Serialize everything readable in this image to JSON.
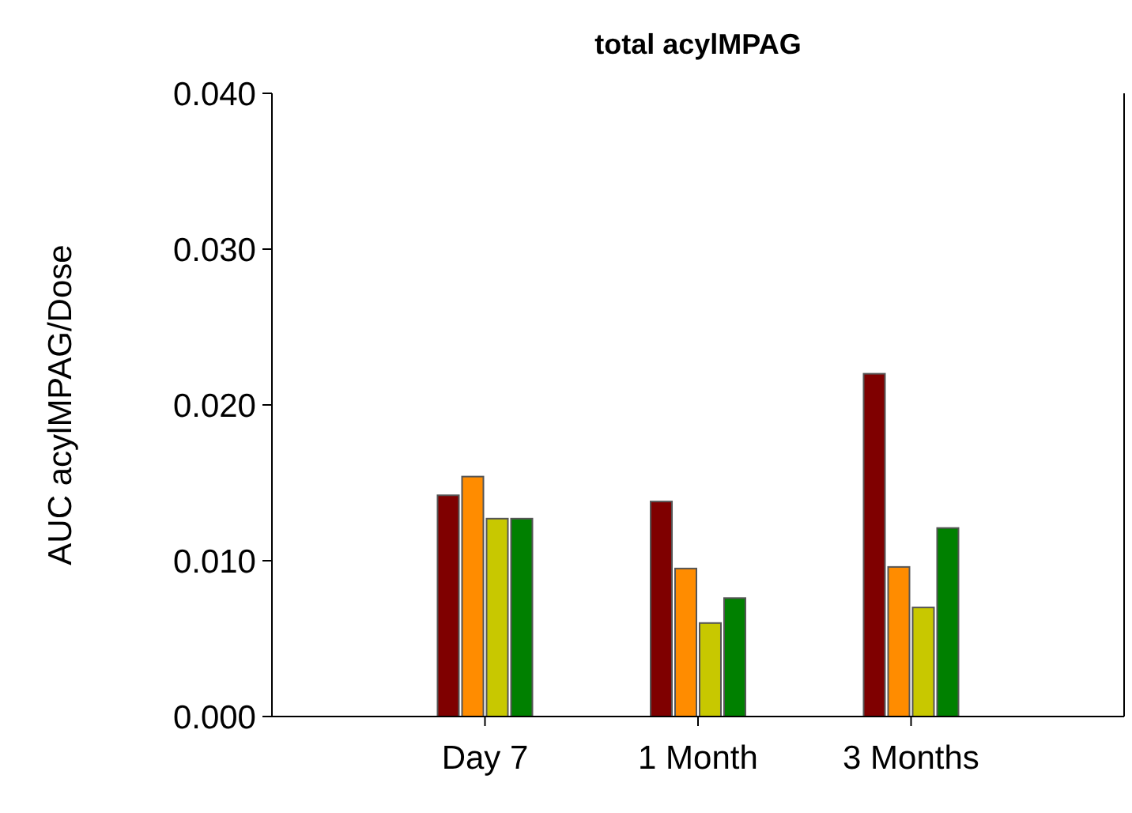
{
  "chart_data": {
    "type": "bar",
    "title": "total acylMPAG",
    "ylabel": "AUC acylMPAG/Dose",
    "categories": [
      "Day 7",
      "1 Month",
      "3 Months"
    ],
    "series": [
      {
        "color": "#7f0000",
        "values": [
          0.0142,
          0.0138,
          0.022
        ]
      },
      {
        "color": "#ff8c00",
        "values": [
          0.0154,
          0.0095,
          0.0096
        ]
      },
      {
        "color": "#c8c800",
        "values": [
          0.0127,
          0.006,
          0.007
        ]
      },
      {
        "color": "#008000",
        "values": [
          0.0127,
          0.0076,
          0.0121
        ]
      }
    ],
    "ylim": [
      0,
      0.04
    ],
    "yticks": [
      {
        "value": 0,
        "label": "0.000"
      },
      {
        "value": 0.01,
        "label": "0.010"
      },
      {
        "value": 0.02,
        "label": "0.020"
      },
      {
        "value": 0.03,
        "label": "0.030"
      },
      {
        "value": 0.04,
        "label": "0.040"
      }
    ],
    "grid": false
  }
}
